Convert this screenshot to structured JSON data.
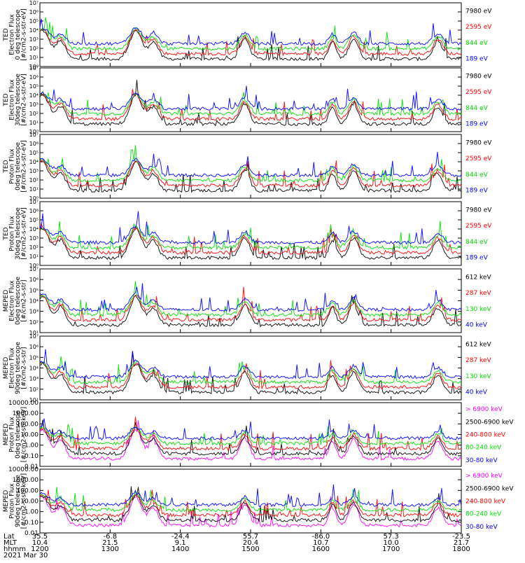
{
  "chart_data": [
    {
      "type": "line",
      "ylabel_lines": [
        "TED",
        "Electron Flux",
        "0 deg telescope",
        "[#/cm2-s-str-eV]"
      ],
      "y_scale": "log",
      "ylim": [
        1,
        10000000
      ],
      "y_tick_labels": [
        "10⁰",
        "10¹",
        "10²",
        "10³",
        "10⁴",
        "10⁵",
        "10⁶",
        "10⁷"
      ],
      "series": [
        {
          "name": "7980 eV",
          "color": "#000000"
        },
        {
          "name": "2595 eV",
          "color": "#ff0000"
        },
        {
          "name": "844 eV",
          "color": "#00dd00"
        },
        {
          "name": "189 eV",
          "color": "#0000ff"
        }
      ]
    },
    {
      "type": "line",
      "ylabel_lines": [
        "TED",
        "Electron Flux",
        "30deg telescope",
        "[#/cm2-s-str-eV]"
      ],
      "y_scale": "log",
      "ylim": [
        1,
        10000000
      ],
      "y_tick_labels": [
        "10⁰",
        "10¹",
        "10²",
        "10³",
        "10⁴",
        "10⁵",
        "10⁶",
        "10⁷"
      ],
      "series": [
        {
          "name": "7980 eV",
          "color": "#000000"
        },
        {
          "name": "2595 eV",
          "color": "#ff0000"
        },
        {
          "name": "844 eV",
          "color": "#00dd00"
        },
        {
          "name": "189 eV",
          "color": "#0000ff"
        }
      ]
    },
    {
      "type": "line",
      "ylabel_lines": [
        "TED",
        "Proton Flux",
        "0deg telescope",
        "[#/cm2-s-str-eV]"
      ],
      "y_scale": "log",
      "ylim": [
        1,
        10000000
      ],
      "y_tick_labels": [
        "10⁰",
        "10¹",
        "10²",
        "10³",
        "10⁴",
        "10⁵",
        "10⁶",
        "10⁷"
      ],
      "series": [
        {
          "name": "7980 eV",
          "color": "#000000"
        },
        {
          "name": "2595 eV",
          "color": "#ff0000"
        },
        {
          "name": "844 eV",
          "color": "#00dd00"
        },
        {
          "name": "189 eV",
          "color": "#0000ff"
        }
      ]
    },
    {
      "type": "line",
      "ylabel_lines": [
        "TED",
        "Proton Flux",
        "30deg telescope",
        "[#/cm2-s-str-eV]"
      ],
      "y_scale": "log",
      "ylim": [
        1,
        10000000
      ],
      "y_tick_labels": [
        "10⁰",
        "10¹",
        "10²",
        "10³",
        "10⁴",
        "10⁵",
        "10⁶",
        "10⁷"
      ],
      "series": [
        {
          "name": "7980 eV",
          "color": "#000000"
        },
        {
          "name": "2595 eV",
          "color": "#ff0000"
        },
        {
          "name": "844 eV",
          "color": "#00dd00"
        },
        {
          "name": "189 eV",
          "color": "#0000ff"
        }
      ]
    },
    {
      "type": "line",
      "ylabel_lines": [
        "MEPED",
        "Electron Flux",
        "0deg telescope",
        "[#/cm2-s-str]"
      ],
      "y_scale": "log",
      "ylim": [
        10,
        10000000
      ],
      "y_tick_labels": [
        "10¹",
        "10²",
        "10³",
        "10⁴",
        "10⁵",
        "10⁶",
        "10⁷"
      ],
      "series": [
        {
          "name": "612 keV",
          "color": "#000000"
        },
        {
          "name": "287 keV",
          "color": "#ff0000"
        },
        {
          "name": "130 keV",
          "color": "#00dd00"
        },
        {
          "name": "40 keV",
          "color": "#0000ff"
        }
      ]
    },
    {
      "type": "line",
      "ylabel_lines": [
        "MEPED",
        "Electron Flux",
        "90deg telescope",
        "[#/cm2-s-str]"
      ],
      "y_scale": "log",
      "ylim": [
        10,
        10000000
      ],
      "y_tick_labels": [
        "10¹",
        "10²",
        "10³",
        "10⁴",
        "10⁵",
        "10⁶",
        "10⁷"
      ],
      "series": [
        {
          "name": "612 keV",
          "color": "#000000"
        },
        {
          "name": "287 keV",
          "color": "#ff0000"
        },
        {
          "name": "130 keV",
          "color": "#00dd00"
        },
        {
          "name": "40 keV",
          "color": "#0000ff"
        }
      ]
    },
    {
      "type": "line",
      "ylabel_lines": [
        "MEPED",
        "Proton Flux",
        "0deg telescope",
        "[#/cm2-s-str-keV]"
      ],
      "y_scale": "log",
      "ylim": [
        0.01,
        10000
      ],
      "y_tick_labels": [
        "0.01",
        "0.10",
        "1.00",
        "10.00",
        "100.00",
        "1000.00",
        "10000.00"
      ],
      "series": [
        {
          "name": "> 6900 keV",
          "color": "#ff00ff"
        },
        {
          "name": "2500-6900 keV",
          "color": "#000000"
        },
        {
          "name": "240-800 keV",
          "color": "#ff0000"
        },
        {
          "name": "80-240 keV",
          "color": "#00dd00"
        },
        {
          "name": "30-80 keV",
          "color": "#0000ff"
        }
      ]
    },
    {
      "type": "line",
      "ylabel_lines": [
        "MEPED",
        "Proton Flux",
        "90deg telescope",
        "[#/cm2-s-str-keV]"
      ],
      "y_scale": "log",
      "ylim": [
        0.01,
        10000
      ],
      "y_tick_labels": [
        "0.01",
        "0.10",
        "1.00",
        "10.00",
        "100.00",
        "1000.00",
        "10000.00"
      ],
      "series": [
        {
          "name": "> 6900 keV",
          "color": "#ff00ff"
        },
        {
          "name": "2500-6900 keV",
          "color": "#000000"
        },
        {
          "name": "240-800 keV",
          "color": "#ff0000"
        },
        {
          "name": "80-240 keV",
          "color": "#00dd00"
        },
        {
          "name": "30-80 keV",
          "color": "#0000ff"
        }
      ]
    }
  ],
  "x_axis": {
    "row_labels": [
      "Lat",
      "MLT",
      "hhmm"
    ],
    "ticks": [
      {
        "lat": "35.5",
        "mlt": "10.4",
        "hhmm": "1200"
      },
      {
        "lat": "-6.8",
        "mlt": "21.5",
        "hhmm": "1300"
      },
      {
        "lat": "-24.4",
        "mlt": "9.1",
        "hhmm": "1400"
      },
      {
        "lat": "55.7",
        "mlt": "20.4",
        "hhmm": "1500"
      },
      {
        "lat": "-86.0",
        "mlt": "10.7",
        "hhmm": "1600"
      },
      {
        "lat": "57.3",
        "mlt": "10.0",
        "hhmm": "1700"
      },
      {
        "lat": "-23.5",
        "mlt": "21.7",
        "hhmm": "1800"
      }
    ],
    "date": "2021 Mar 30",
    "range_hhmm": [
      1200,
      1800
    ]
  }
}
